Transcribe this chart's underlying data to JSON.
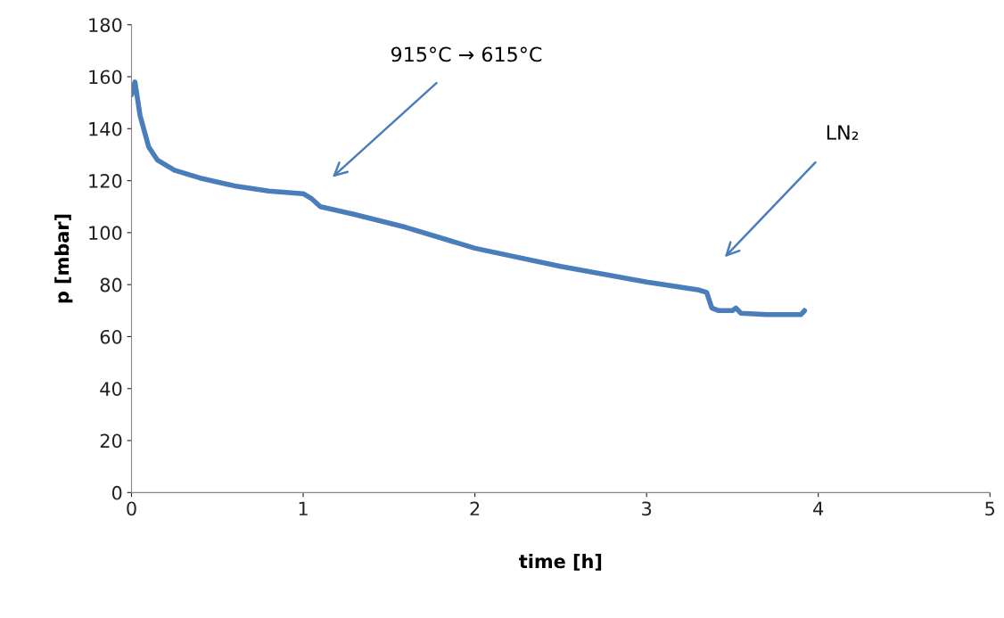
{
  "chart_data": {
    "type": "line",
    "xlabel": "time [h]",
    "ylabel": "p [mbar]",
    "xlim": [
      0,
      5
    ],
    "xticks": [
      0,
      1,
      2,
      3,
      4,
      5
    ],
    "ylim": [
      0,
      180
    ],
    "yticks": [
      0,
      20,
      40,
      60,
      80,
      100,
      120,
      140,
      160,
      180
    ],
    "grid": false,
    "marker": "none",
    "line_style": "solid",
    "series": [
      {
        "color": "#4a7ebb",
        "x": [
          0.0,
          0.02,
          0.05,
          0.1,
          0.15,
          0.25,
          0.4,
          0.6,
          0.8,
          1.0,
          1.05,
          1.1,
          1.3,
          1.6,
          2.0,
          2.5,
          3.0,
          3.3,
          3.35,
          3.38,
          3.42,
          3.5,
          3.52,
          3.55,
          3.7,
          3.9,
          3.92
        ],
        "values": [
          153,
          158,
          145,
          133,
          128,
          124,
          121,
          118,
          116,
          115,
          113,
          110,
          107,
          102,
          94,
          87,
          81,
          78,
          77,
          71,
          70,
          70,
          71,
          69,
          68.5,
          68.5,
          70
        ]
      }
    ],
    "annotations": [
      "915°C → 615°C",
      "LN₂"
    ]
  }
}
